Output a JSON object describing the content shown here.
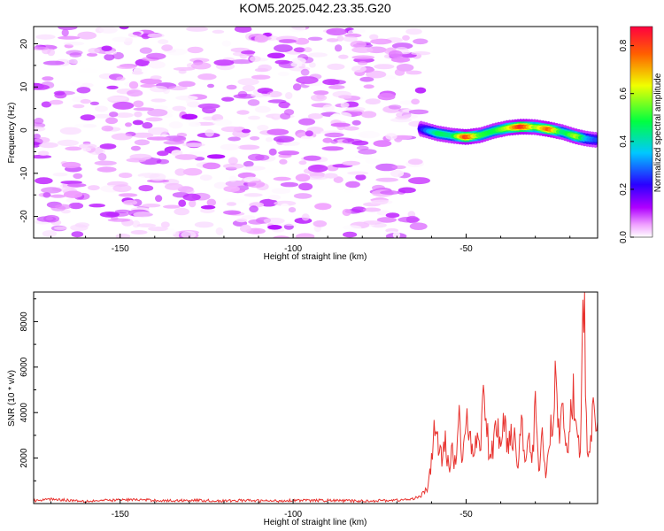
{
  "title": "KOM5.2025.042.23.35.G20",
  "chart_data": [
    {
      "type": "heatmap",
      "xlabel": "Height of straight line (km)",
      "ylabel": "Frequency (Hz)",
      "xlim": [
        -175,
        -12
      ],
      "ylim": [
        -25,
        24
      ],
      "xticks": [
        -150,
        -100,
        -50
      ],
      "yticks": [
        -20,
        -10,
        0,
        10,
        20
      ],
      "grid": false,
      "colorbar": {
        "label": "Normalized spectral amplitude",
        "range": [
          0,
          0.88
        ],
        "ticks": [
          0.0,
          0.2,
          0.4,
          0.6,
          0.8
        ],
        "colormap": "rainbow (magenta-blue-cyan-green-yellow-red)"
      },
      "noise_region": {
        "x_range": [
          -175,
          -63
        ],
        "freq_range": [
          -25,
          24
        ],
        "amplitude_range": [
          0.0,
          0.12
        ]
      },
      "signal_band": {
        "x": [
          -63,
          -58,
          -54,
          -50,
          -46,
          -42,
          -38,
          -34,
          -30,
          -26,
          -22,
          -18,
          -15,
          -12
        ],
        "freq": [
          0.3,
          -0.8,
          -1.3,
          -1.6,
          -1.2,
          -0.2,
          0.5,
          0.8,
          0.7,
          0.2,
          -0.5,
          -1.5,
          -2.0,
          -2.3
        ],
        "peak_amplitude": [
          0.15,
          0.45,
          0.4,
          0.85,
          0.5,
          0.45,
          0.6,
          0.88,
          0.55,
          0.8,
          0.4,
          0.6,
          0.3,
          0.2
        ]
      }
    },
    {
      "type": "line",
      "xlabel": "Height of straight line (km)",
      "ylabel": "SNR (10 * v/v)",
      "xlim": [
        -175,
        -12
      ],
      "ylim": [
        0,
        9300
      ],
      "xticks": [
        -150,
        -100,
        -50
      ],
      "yticks": [
        2000,
        4000,
        6000,
        8000
      ],
      "grid": false,
      "series": [
        {
          "color": "#e8332f",
          "x": [
            -175,
            -170,
            -165,
            -160,
            -155,
            -150,
            -145,
            -140,
            -135,
            -130,
            -125,
            -120,
            -115,
            -110,
            -105,
            -100,
            -95,
            -90,
            -85,
            -80,
            -75,
            -70,
            -66,
            -63,
            -61,
            -60,
            -59,
            -58,
            -57,
            -56,
            -55,
            -54,
            -53,
            -52,
            -51,
            -50,
            -49,
            -48,
            -47,
            -46,
            -45,
            -44,
            -43,
            -42,
            -41,
            -40,
            -39,
            -38,
            -37,
            -36,
            -35,
            -34,
            -33,
            -32,
            -31,
            -30,
            -29,
            -28,
            -27,
            -26,
            -25,
            -24,
            -23,
            -22,
            -21,
            -20,
            -19,
            -18,
            -17,
            -16,
            -15,
            -14,
            -13,
            -12
          ],
          "values": [
            120,
            200,
            150,
            110,
            130,
            160,
            170,
            140,
            120,
            150,
            130,
            110,
            140,
            120,
            110,
            150,
            130,
            140,
            120,
            110,
            130,
            150,
            180,
            350,
            700,
            1800,
            3600,
            2600,
            1800,
            2700,
            1500,
            2300,
            1700,
            4100,
            1600,
            4500,
            2800,
            1900,
            3100,
            2500,
            4600,
            3200,
            1800,
            2700,
            3600,
            2200,
            3900,
            2600,
            3300,
            2800,
            1600,
            3800,
            2300,
            2900,
            1900,
            4000,
            1200,
            3400,
            1000,
            2600,
            3800,
            5500,
            3000,
            4700,
            2600,
            3300,
            5000,
            2800,
            2300,
            9300,
            1900,
            3000,
            4000,
            3600
          ]
        }
      ]
    }
  ]
}
